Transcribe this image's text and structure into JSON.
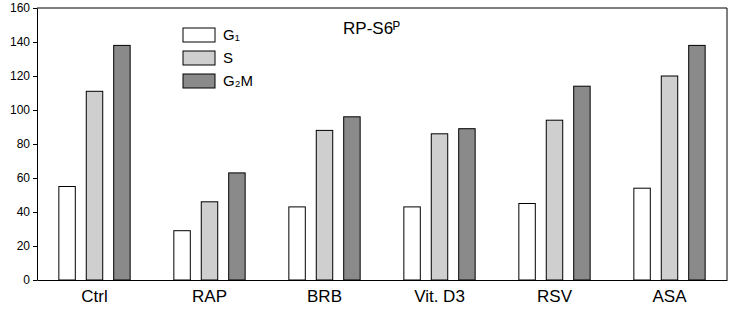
{
  "chart_data": {
    "type": "bar",
    "title": "RP-S6ᴾ",
    "categories": [
      "Ctrl",
      "RAP",
      "BRB",
      "Vit. D3",
      "RSV",
      "ASA"
    ],
    "series": [
      {
        "name": "G₁",
        "color": "#ffffff",
        "values": [
          55,
          29,
          43,
          43,
          45,
          54
        ]
      },
      {
        "name": "S",
        "color": "#cfcfcf",
        "values": [
          111,
          46,
          88,
          86,
          94,
          120
        ]
      },
      {
        "name": "G₂M",
        "color": "#8a8a8a",
        "values": [
          138,
          63,
          96,
          89,
          114,
          138
        ]
      }
    ],
    "ylim": [
      0,
      160
    ],
    "yticks": [
      0,
      20,
      40,
      60,
      80,
      100,
      120,
      140,
      160
    ],
    "grid": false,
    "legend": "upper left"
  }
}
